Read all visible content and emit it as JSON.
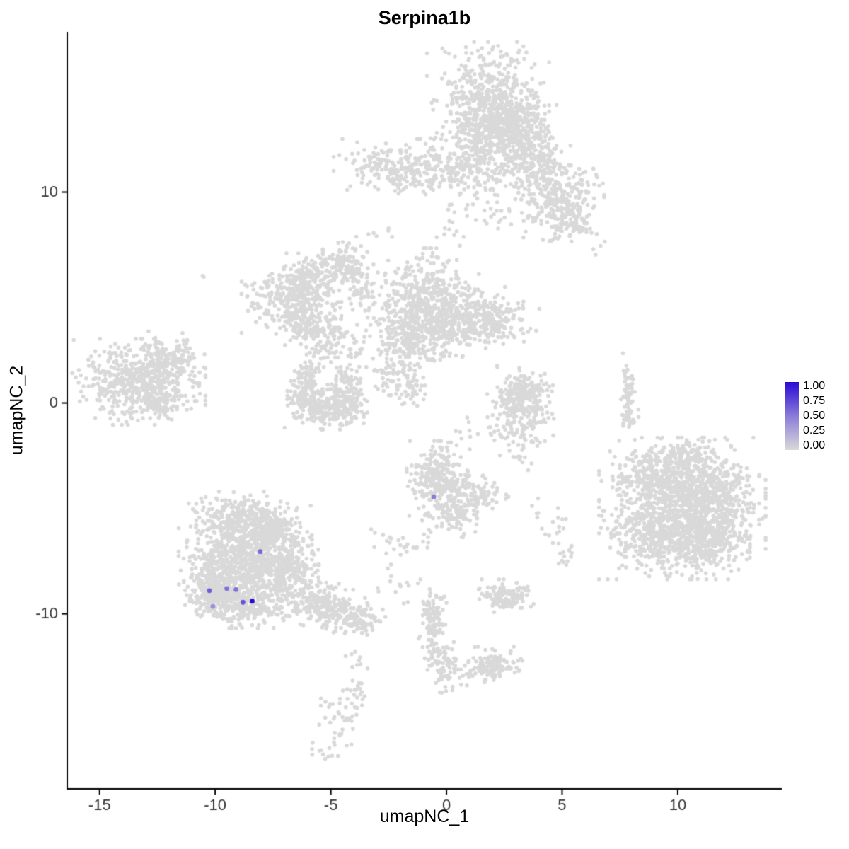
{
  "chart_data": {
    "type": "scatter",
    "title": "Serpina1b",
    "xlabel": "umapNC_1",
    "ylabel": "umapNC_2",
    "xlim": [
      -16.4,
      14.5
    ],
    "ylim": [
      -18.3,
      17.6
    ],
    "x_ticks": [
      -15,
      -10,
      -5,
      0,
      5,
      10
    ],
    "y_ticks": [
      -10,
      0,
      10
    ],
    "grid": false,
    "legend_position": "right",
    "point_radius_px": 2.8,
    "expressing_point_radius_px": 3.4,
    "colors": {
      "background": "#FFFFFF",
      "axis": "#000000",
      "tick_label": "#333333",
      "gray_point": "#D9D9D9",
      "gradient_low": "#D9D9D9",
      "gradient_mid": "#8A7BD8",
      "gradient_high": "#2B09D6"
    },
    "legend": {
      "labels": [
        "1.00",
        "0.75",
        "0.50",
        "0.25",
        "0.00"
      ],
      "values": [
        1.0,
        0.75,
        0.5,
        0.25,
        0.0
      ]
    },
    "cluster_format": [
      "center_x",
      "center_y",
      "sd_x",
      "sd_y",
      "n_points",
      "rotation_deg"
    ],
    "background_clusters": [
      [
        1.8,
        14.0,
        1.1,
        1.3,
        650,
        0
      ],
      [
        2.6,
        12.9,
        0.9,
        0.8,
        250,
        0
      ],
      [
        3.8,
        11.2,
        0.9,
        0.7,
        220,
        -20
      ],
      [
        4.9,
        9.6,
        0.8,
        0.8,
        200,
        0
      ],
      [
        5.3,
        8.6,
        0.5,
        0.4,
        80,
        0
      ],
      [
        -2.0,
        11.2,
        1.2,
        0.55,
        220,
        0
      ],
      [
        -0.5,
        10.9,
        0.8,
        0.5,
        70,
        0
      ],
      [
        1.1,
        11.3,
        0.5,
        0.5,
        80,
        0
      ],
      [
        3.4,
        12.8,
        0.5,
        0.5,
        70,
        0
      ],
      [
        2.1,
        9.2,
        1.3,
        0.6,
        50,
        0
      ],
      [
        6.7,
        7.1,
        0.2,
        0.3,
        4,
        0
      ],
      [
        -2.8,
        8.1,
        0.3,
        0.3,
        5,
        0
      ],
      [
        -3.5,
        7.4,
        0.2,
        0.4,
        4,
        0
      ],
      [
        0.3,
        7.7,
        0.4,
        0.5,
        8,
        0
      ],
      [
        -1.0,
        4.7,
        1.0,
        1.1,
        500,
        0
      ],
      [
        0.6,
        3.9,
        0.9,
        0.7,
        250,
        0
      ],
      [
        2.1,
        4.0,
        0.8,
        0.5,
        150,
        0
      ],
      [
        -1.7,
        3.0,
        0.6,
        0.6,
        150,
        0
      ],
      [
        -6.7,
        5.0,
        0.9,
        0.7,
        260,
        0
      ],
      [
        -5.7,
        5.9,
        0.7,
        0.5,
        130,
        0
      ],
      [
        -4.6,
        6.7,
        0.5,
        0.5,
        90,
        0
      ],
      [
        -6.0,
        3.9,
        0.6,
        0.5,
        130,
        0
      ],
      [
        -5.1,
        2.9,
        0.5,
        0.5,
        70,
        0
      ],
      [
        -3.9,
        2.4,
        0.4,
        0.6,
        25,
        0
      ],
      [
        -3.8,
        5.8,
        0.25,
        0.9,
        70,
        15
      ],
      [
        -6.1,
        0.7,
        0.35,
        0.7,
        130,
        0
      ],
      [
        -5.2,
        -0.3,
        0.75,
        0.4,
        220,
        0
      ],
      [
        -4.3,
        0.6,
        0.35,
        0.65,
        130,
        0
      ],
      [
        -2.4,
        1.3,
        0.35,
        0.8,
        60,
        0
      ],
      [
        -1.5,
        0.9,
        0.3,
        0.5,
        50,
        0
      ],
      [
        -13.3,
        1.0,
        1.2,
        0.85,
        520,
        0
      ],
      [
        -11.9,
        2.2,
        0.6,
        0.5,
        140,
        0
      ],
      [
        -12.4,
        0.0,
        0.5,
        0.4,
        90,
        0
      ],
      [
        -10.6,
        6.0,
        0.15,
        0.15,
        2,
        0
      ],
      [
        7.9,
        0.2,
        0.18,
        0.9,
        70,
        0
      ],
      [
        3.2,
        -0.4,
        0.6,
        0.9,
        260,
        0
      ],
      [
        3.4,
        0.6,
        0.4,
        0.4,
        80,
        0
      ],
      [
        0.6,
        -1.4,
        0.4,
        0.6,
        12,
        0
      ],
      [
        3.3,
        -2.6,
        0.3,
        0.4,
        10,
        0
      ],
      [
        -0.4,
        -3.6,
        0.55,
        0.75,
        280,
        0
      ],
      [
        1.0,
        -4.4,
        0.7,
        0.4,
        130,
        0
      ],
      [
        0.4,
        -5.4,
        0.4,
        0.4,
        60,
        0
      ],
      [
        -0.9,
        -5.8,
        0.3,
        0.5,
        15,
        0
      ],
      [
        10.2,
        -5.0,
        1.5,
        1.4,
        1000,
        0
      ],
      [
        9.1,
        -3.4,
        0.8,
        0.6,
        220,
        0
      ],
      [
        11.6,
        -4.4,
        0.8,
        0.7,
        220,
        0
      ],
      [
        11.2,
        -6.7,
        0.8,
        0.6,
        220,
        0
      ],
      [
        8.8,
        -6.4,
        0.8,
        0.6,
        220,
        0
      ],
      [
        10.3,
        -2.6,
        0.9,
        0.4,
        120,
        0
      ],
      [
        -8.7,
        -7.4,
        1.2,
        1.1,
        800,
        0
      ],
      [
        -8.9,
        -5.4,
        0.8,
        0.5,
        240,
        0
      ],
      [
        -7.2,
        -7.7,
        0.7,
        0.7,
        240,
        0
      ],
      [
        -10.1,
        -8.7,
        0.5,
        0.6,
        200,
        0
      ],
      [
        -8.9,
        -9.6,
        0.8,
        0.45,
        240,
        0
      ],
      [
        -7.4,
        -5.9,
        0.5,
        0.4,
        120,
        0
      ],
      [
        -5.8,
        -9.4,
        0.9,
        0.5,
        220,
        -15
      ],
      [
        -4.5,
        -9.9,
        0.6,
        0.4,
        120,
        -15
      ],
      [
        -3.6,
        -10.4,
        0.4,
        0.3,
        50,
        0
      ],
      [
        -3.9,
        -12.3,
        0.3,
        0.4,
        10,
        0
      ],
      [
        -3.9,
        -13.9,
        0.25,
        0.5,
        25,
        0
      ],
      [
        -4.6,
        -15.3,
        0.4,
        0.7,
        30,
        20
      ],
      [
        -5.3,
        -16.6,
        0.3,
        0.4,
        12,
        0
      ],
      [
        -0.6,
        -10.4,
        0.25,
        0.85,
        120,
        0
      ],
      [
        -0.1,
        -12.3,
        0.3,
        0.6,
        70,
        0
      ],
      [
        2.1,
        -12.4,
        0.55,
        0.35,
        110,
        0
      ],
      [
        0.9,
        -12.9,
        0.5,
        0.3,
        25,
        0
      ],
      [
        2.6,
        -9.2,
        0.5,
        0.35,
        130,
        0
      ],
      [
        5.2,
        -7.1,
        0.3,
        0.3,
        15,
        0
      ],
      [
        4.7,
        -6.2,
        0.25,
        0.25,
        8,
        0
      ],
      [
        -2.6,
        -6.6,
        0.3,
        0.3,
        12,
        0
      ],
      [
        -1.7,
        -6.9,
        0.25,
        0.25,
        8,
        0
      ],
      [
        4.4,
        -5.2,
        0.4,
        0.4,
        10,
        0
      ],
      [
        -2.4,
        -8.6,
        0.5,
        0.5,
        15,
        0
      ]
    ],
    "cell_format": [
      "x",
      "y",
      "expression"
    ],
    "expressing_cells": [
      [
        -0.55,
        -4.45,
        0.45
      ],
      [
        -8.05,
        -7.05,
        0.55
      ],
      [
        -10.25,
        -8.9,
        0.6
      ],
      [
        -9.5,
        -8.8,
        0.5
      ],
      [
        -9.1,
        -8.85,
        0.5
      ],
      [
        -10.1,
        -9.65,
        0.35
      ],
      [
        -8.8,
        -9.45,
        0.65
      ],
      [
        -8.4,
        -9.4,
        1.0
      ]
    ]
  }
}
